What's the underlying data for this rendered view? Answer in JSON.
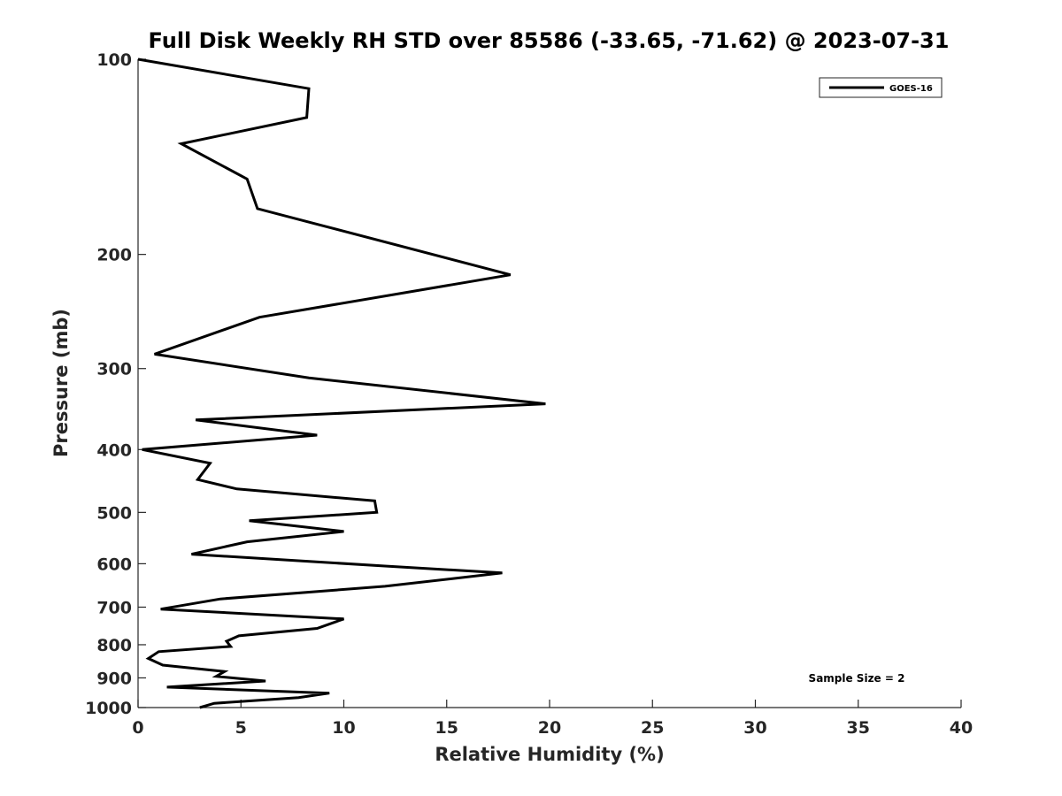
{
  "chart_data": {
    "type": "line",
    "title": "Full Disk Weekly RH STD over 85586 (-33.65, -71.62) @ 2023-07-31",
    "xlabel": "Relative Humidity (%)",
    "ylabel": "Pressure (mb)",
    "xlim": [
      0,
      40
    ],
    "ylim": [
      100,
      1000
    ],
    "y_scale": "log",
    "y_reversed": true,
    "grid": false,
    "legend_position": "top-right",
    "xticks": [
      0,
      5,
      10,
      15,
      20,
      25,
      30,
      35,
      40
    ],
    "xtick_labels": [
      "0",
      "5",
      "10",
      "15",
      "20",
      "25",
      "30",
      "35",
      "40"
    ],
    "yticks": [
      100,
      200,
      300,
      400,
      500,
      600,
      700,
      800,
      900,
      1000
    ],
    "ytick_labels": [
      "100",
      "200",
      "300",
      "400",
      "500",
      "600",
      "700",
      "800",
      "900",
      "1000"
    ],
    "series": [
      {
        "name": "GOES-16",
        "color": "#000000",
        "x": [
          0.0,
          8.3,
          8.2,
          2.1,
          5.3,
          5.8,
          18.1,
          5.9,
          0.8,
          8.3,
          19.8,
          2.8,
          8.7,
          0.2,
          3.5,
          2.9,
          4.8,
          11.5,
          11.6,
          5.4,
          10.0,
          5.3,
          2.6,
          12.0,
          17.7,
          12.0,
          4.0,
          1.1,
          10.0,
          8.7,
          4.9,
          4.3,
          4.5,
          1.0,
          0.5,
          1.2,
          4.2,
          3.8,
          6.2,
          1.4,
          9.3,
          7.8,
          3.7,
          3.0
        ],
        "y": [
          100,
          111,
          123,
          135,
          153,
          170,
          215,
          250,
          285,
          310,
          340,
          360,
          380,
          400,
          420,
          445,
          460,
          480,
          500,
          515,
          535,
          555,
          580,
          605,
          620,
          650,
          680,
          705,
          730,
          755,
          775,
          790,
          805,
          820,
          840,
          860,
          880,
          895,
          910,
          930,
          950,
          965,
          985,
          1000
        ]
      }
    ],
    "legend_entries": [
      "GOES-16"
    ],
    "annotations": [
      "Sample Size = 2"
    ]
  }
}
